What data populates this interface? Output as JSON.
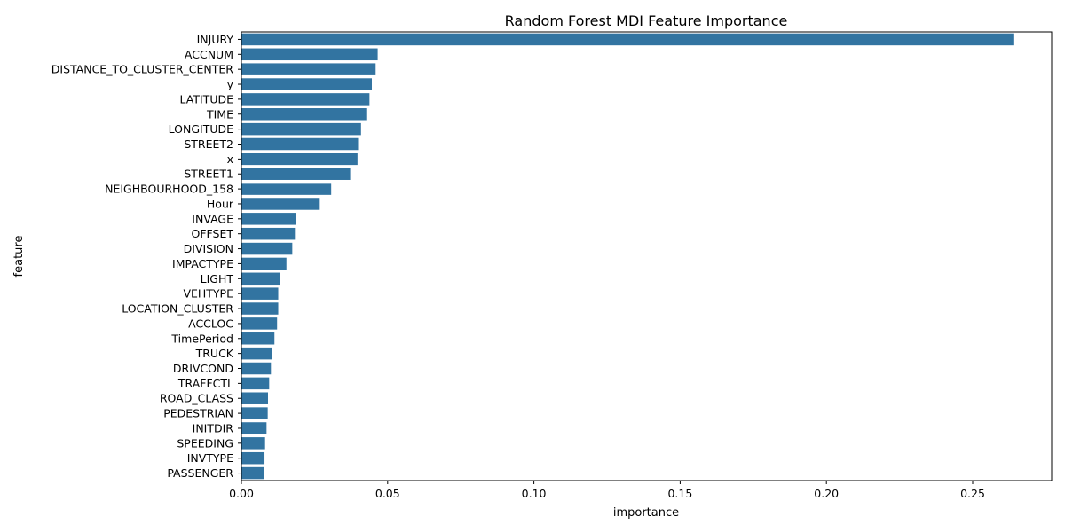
{
  "chart_data": {
    "type": "bar",
    "orientation": "horizontal",
    "title": "Random Forest MDI Feature Importance",
    "xlabel": "importance",
    "ylabel": "feature",
    "xlim": [
      0,
      0.277
    ],
    "xticks": [
      0.0,
      0.05,
      0.1,
      0.15,
      0.2,
      0.25
    ],
    "xtick_labels": [
      "0.00",
      "0.05",
      "0.10",
      "0.15",
      "0.20",
      "0.25"
    ],
    "grid": false,
    "legend": "none",
    "bar_color": "#3274a1",
    "categories": [
      "INJURY",
      "ACCNUM",
      "DISTANCE_TO_CLUSTER_CENTER",
      "y",
      "LATITUDE",
      "TIME",
      "LONGITUDE",
      "STREET2",
      "x",
      "STREET1",
      "NEIGHBOURHOOD_158",
      "Hour",
      "INVAGE",
      "OFFSET",
      "DIVISION",
      "IMPACTYPE",
      "LIGHT",
      "VEHTYPE",
      "LOCATION_CLUSTER",
      "ACCLOC",
      "TimePeriod",
      "TRUCK",
      "DRIVCOND",
      "TRAFFCTL",
      "ROAD_CLASS",
      "PEDESTRIAN",
      "INITDIR",
      "SPEEDING",
      "INVTYPE",
      "PASSENGER"
    ],
    "values": [
      0.2639,
      0.0466,
      0.0459,
      0.0446,
      0.0438,
      0.0427,
      0.0409,
      0.0399,
      0.0397,
      0.0372,
      0.0307,
      0.0268,
      0.0186,
      0.0183,
      0.0174,
      0.0154,
      0.0131,
      0.0126,
      0.0126,
      0.0122,
      0.0113,
      0.0105,
      0.0101,
      0.0095,
      0.0091,
      0.009,
      0.0086,
      0.0081,
      0.0079,
      0.0077
    ]
  }
}
